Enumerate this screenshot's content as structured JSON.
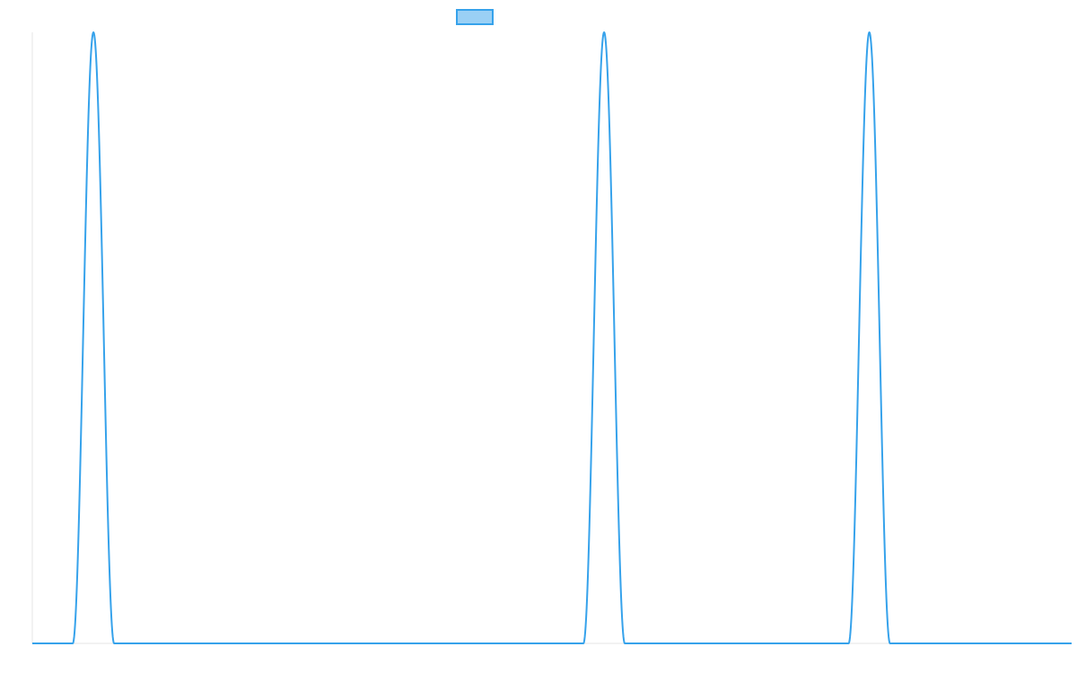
{
  "chart_data": {
    "type": "line",
    "title": "",
    "xlabel": "",
    "ylabel": "",
    "grid": false,
    "legend": "top-center",
    "x_range": [
      0,
      1156
    ],
    "ylim": [
      0,
      1
    ],
    "series": [
      {
        "name": "",
        "color": "#36a2eb",
        "fill": "#9ad0f5",
        "peaks": [
          {
            "center": 68,
            "half_width": 23,
            "height": 1
          },
          {
            "center": 636,
            "half_width": 23,
            "height": 1
          },
          {
            "center": 931,
            "half_width": 23,
            "height": 1
          }
        ],
        "baseline": 0
      }
    ]
  }
}
